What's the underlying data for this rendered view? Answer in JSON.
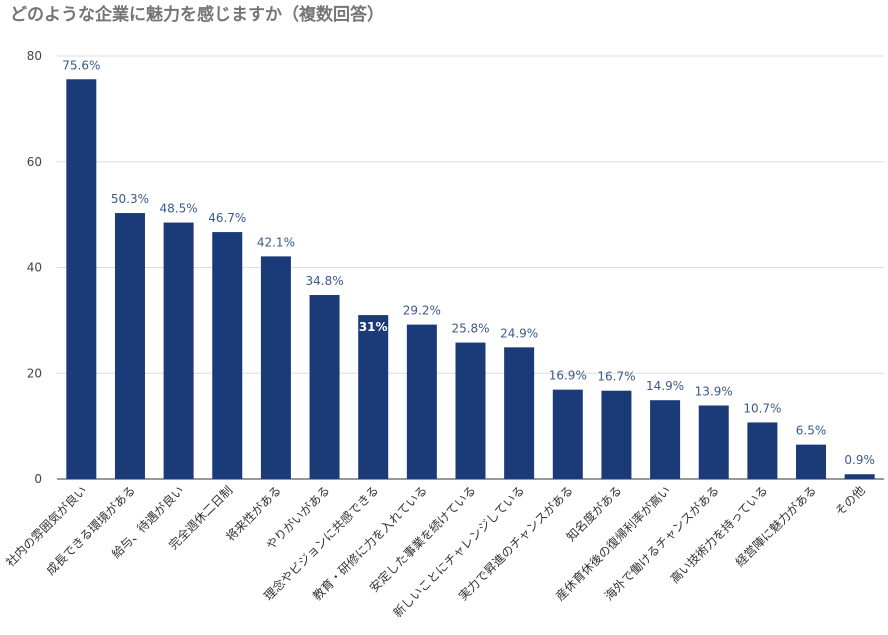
{
  "chart_data": {
    "type": "bar",
    "title": "どのような企業に魅力を感じますか（複数回答）",
    "categories": [
      "社内の雰囲気が良い",
      "成長できる環境がある",
      "給与、待遇が良い",
      "完全週休二日制",
      "将来性がある",
      "やりがいがある",
      "理念やビジョンに共感できる",
      "教育・研修に力を入れている",
      "安定した事業を続けている",
      "新しいことにチャレンジしている",
      "実力で昇進のチャンスがある",
      "知名度がある",
      "産休育休後の復帰利率が高い",
      "海外で働けるチャンスがある",
      "高い技術力を持っている",
      "経営陣に魅力がある",
      "その他"
    ],
    "values": [
      75.6,
      50.3,
      48.5,
      46.7,
      42.1,
      34.8,
      31,
      29.2,
      25.8,
      24.9,
      16.9,
      16.7,
      14.9,
      13.9,
      10.7,
      6.5,
      0.9
    ],
    "data_labels": [
      "75.6%",
      "50.3%",
      "48.5%",
      "46.7%",
      "42.1%",
      "34.8%",
      "31%",
      "29.2%",
      "25.8%",
      "24.9%",
      "16.9%",
      "16.7%",
      "14.9%",
      "13.9%",
      "10.7%",
      "6.5%",
      "0.9%"
    ],
    "inside_label_index": 6,
    "ylim": [
      0,
      80
    ],
    "yticks": [
      0,
      20,
      40,
      60,
      80
    ],
    "grid": true,
    "xlabel": "",
    "ylabel": "",
    "colors": {
      "bar": "#1a3a78",
      "grid": "#dddddd",
      "axis": "#333333",
      "label": "#3c5a8c"
    }
  }
}
